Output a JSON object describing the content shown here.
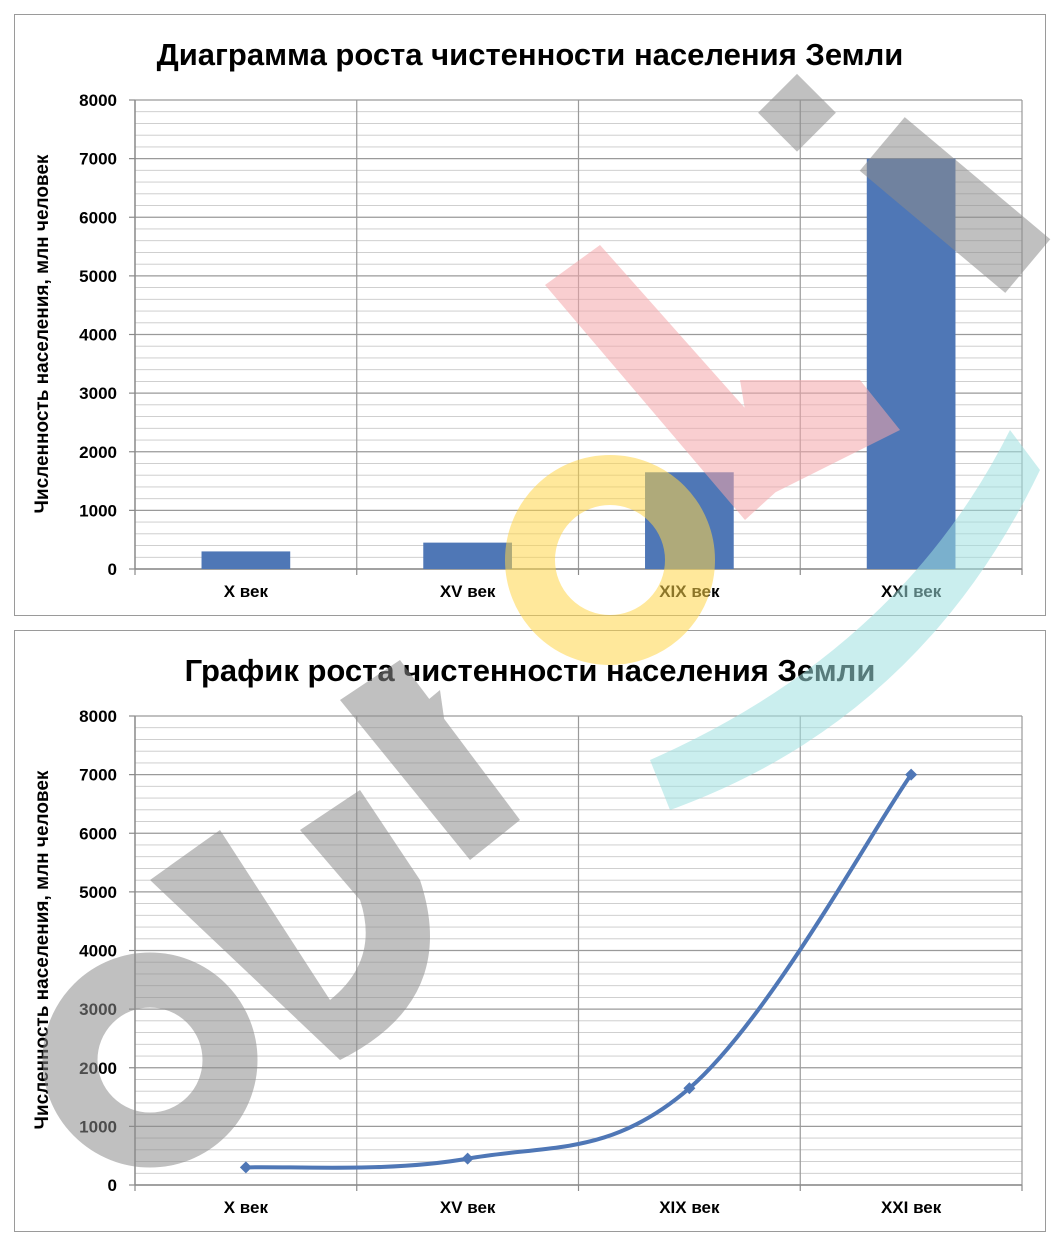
{
  "chart_data": [
    {
      "type": "bar",
      "title": "Диаграмма роста чистенности населения Земли",
      "ylabel": "Численность населения, млн человек",
      "xlabel": "",
      "categories": [
        "X век",
        "XV век",
        "XIX век",
        "XXI век"
      ],
      "values": [
        300,
        450,
        1650,
        7000
      ],
      "ylim": [
        0,
        8000
      ],
      "yticks": [
        "0",
        "1000",
        "2000",
        "3000",
        "4000",
        "5000",
        "6000",
        "7000",
        "8000"
      ],
      "minor_step": 200,
      "grid": true,
      "color": "#4f77b6"
    },
    {
      "type": "line",
      "title": "График роста чистенности населения Земли",
      "ylabel": "Численность населения, млн человек",
      "xlabel": "",
      "categories": [
        "X век",
        "XV век",
        "XIX век",
        "XXI век"
      ],
      "values": [
        300,
        450,
        1650,
        7000
      ],
      "ylim": [
        0,
        8000
      ],
      "yticks": [
        "0",
        "1000",
        "2000",
        "3000",
        "4000",
        "5000",
        "6000",
        "7000",
        "8000"
      ],
      "minor_step": 200,
      "grid": true,
      "marker": "diamond",
      "color": "#4f77b6"
    }
  ],
  "watermark": {
    "text": "euroki",
    "colors": [
      "#8c8c8c",
      "#f4a7aa",
      "#ffd54a",
      "#9fe0e0"
    ]
  }
}
